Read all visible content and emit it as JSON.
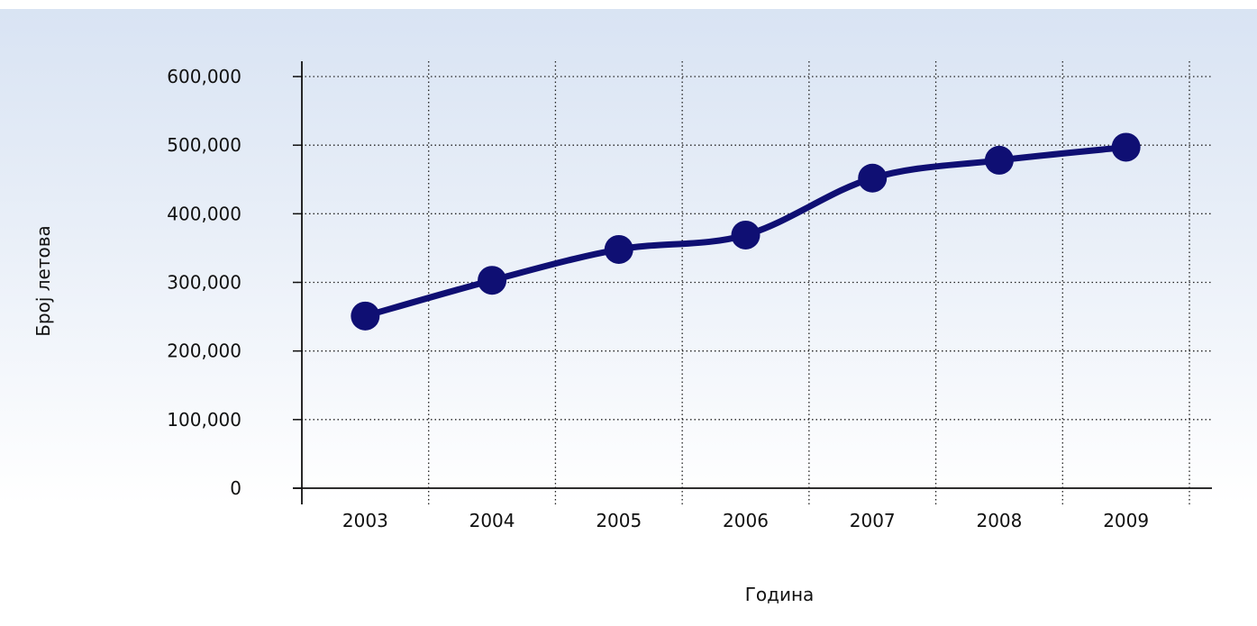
{
  "chart_data": {
    "type": "line",
    "title": "",
    "xlabel": "Година",
    "ylabel": "Број летова",
    "categories": [
      "2003",
      "2004",
      "2005",
      "2006",
      "2007",
      "2008",
      "2009"
    ],
    "series": [
      {
        "values": [
          251000,
          303000,
          348000,
          369000,
          452000,
          478000,
          497000
        ]
      }
    ],
    "ylim": [
      0,
      600000
    ],
    "yticks": [
      "0",
      "100,000",
      "200,000",
      "300,000",
      "400,000",
      "500,000",
      "600,000"
    ],
    "grid": true,
    "legend": "none",
    "colors": {
      "line": "#0f0f73",
      "marker": "#0f0f73",
      "grid": "#222222",
      "axis": "#111111"
    }
  }
}
